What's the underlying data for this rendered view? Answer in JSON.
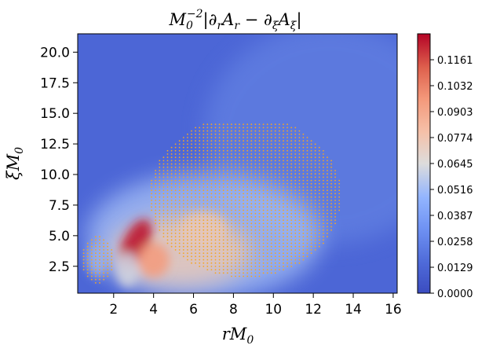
{
  "chart_data": {
    "type": "heatmap",
    "title": "M_0^{-2}|∂_r A_r − ∂_ξ A_ξ|",
    "title_parts": {
      "base": "M",
      "sub0": "0",
      "sup": "−2",
      "body1": "|∂",
      "sub_r": "r",
      "body2": "A",
      "sub_r2": "r",
      "body3": " − ∂",
      "sub_xi": "ξ",
      "body4": "A",
      "sub_xi2": "ξ",
      "body5": "|"
    },
    "xlabel_parts": {
      "base": "rM",
      "sub": "0"
    },
    "ylabel_parts": {
      "base": "ξM",
      "sub": "0"
    },
    "xlim": [
      0.2,
      16.2
    ],
    "ylim": [
      0.3,
      21.5
    ],
    "x_ticks": [
      2,
      4,
      6,
      8,
      10,
      12,
      14,
      16
    ],
    "x_tick_labels": [
      "2",
      "4",
      "6",
      "8",
      "10",
      "12",
      "14",
      "16"
    ],
    "y_ticks": [
      2.5,
      5.0,
      7.5,
      10.0,
      12.5,
      15.0,
      17.5,
      20.0
    ],
    "y_tick_labels": [
      "2.5",
      "5.0",
      "7.5",
      "10.0",
      "12.5",
      "15.0",
      "17.5",
      "20.0"
    ],
    "colorbar": {
      "colormap": "coolwarm",
      "min": 0.0,
      "max": 0.129,
      "ticks": [
        0.0,
        0.0129,
        0.0258,
        0.0387,
        0.0516,
        0.0645,
        0.0774,
        0.0903,
        0.1032,
        0.1161
      ],
      "tick_labels": [
        "0.0000",
        "0.0129",
        "0.0258",
        "0.0387",
        "0.0516",
        "0.0645",
        "0.0774",
        "0.0903",
        "0.1032",
        "0.1161"
      ]
    },
    "hotspots": [
      {
        "x": 3.1,
        "y": 4.3,
        "value": 0.125
      },
      {
        "x": 4.0,
        "y": 3.0,
        "value": 0.095
      },
      {
        "x": 2.7,
        "y": 2.2,
        "value": 0.06
      },
      {
        "x": 1.2,
        "y": 3.0,
        "value": 0.045
      },
      {
        "x": 6.5,
        "y": 5.5,
        "value": 0.075
      }
    ],
    "overlay_points": {
      "color": "#f5a623",
      "region_ellipse": {
        "center": [
          8.6,
          8.2
        ],
        "semi_axis_x": 4.8,
        "semi_axis_y": 6.6
      },
      "region_ellipse_small": {
        "center": [
          1.2,
          3.0
        ],
        "semi_axis_x": 0.8,
        "semi_axis_y": 2.0
      }
    },
    "grid": false
  }
}
